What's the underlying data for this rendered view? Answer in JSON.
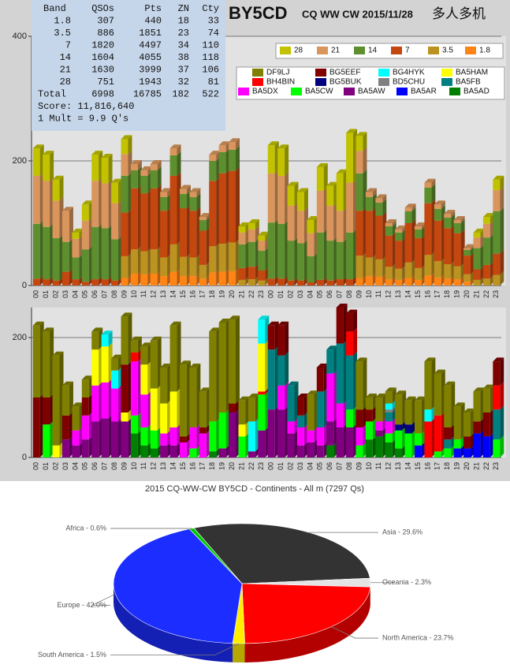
{
  "header": {
    "callsign": "BY5CD",
    "contest": "CQ WW CW 2015/11/28",
    "category": "多人多机"
  },
  "table": {
    "header": [
      "Band",
      "QSOs",
      "Pts",
      "ZN",
      "Cty"
    ],
    "rows": [
      [
        1.8,
        307,
        440,
        18,
        33
      ],
      [
        3.5,
        886,
        1851,
        23,
        74
      ],
      [
        7,
        1820,
        4497,
        34,
        110
      ],
      [
        14,
        1604,
        4055,
        38,
        118
      ],
      [
        21,
        1630,
        3999,
        37,
        106
      ],
      [
        28,
        751,
        1943,
        32,
        81
      ]
    ],
    "total": [
      "Total",
      6998,
      16785,
      182,
      522
    ],
    "score": "Score: 11,816,640",
    "mult": "1 Mult = 9.9 Q's"
  },
  "chart_data": [
    {
      "type": "bar",
      "stacked": true,
      "grid": true,
      "categories": [
        "00",
        "01",
        "02",
        "03",
        "04",
        "05",
        "06",
        "07",
        "08",
        "09",
        "10",
        "11",
        "12",
        "13",
        "14",
        "15",
        "16",
        "17",
        "18",
        "19",
        "20",
        "21",
        "22",
        "23",
        "00",
        "01",
        "02",
        "03",
        "04",
        "05",
        "06",
        "07",
        "08",
        "09",
        "10",
        "11",
        "12",
        "13",
        "14",
        "15",
        "16",
        "17",
        "18",
        "19",
        "20",
        "21",
        "22",
        "23"
      ],
      "ylim": [
        0,
        400
      ],
      "yticks": [
        0,
        200,
        400
      ],
      "series": [
        {
          "name": "28",
          "color": "#c2c200",
          "values": [
            44,
            42,
            34,
            0,
            10,
            26,
            42,
            41,
            33,
            24,
            0,
            0,
            0,
            0,
            0,
            0,
            0,
            0,
            0,
            0,
            0,
            10,
            10,
            8,
            45,
            44,
            32,
            30,
            21,
            38,
            32,
            60,
            80,
            24,
            0,
            0,
            0,
            0,
            0,
            0,
            0,
            0,
            0,
            0,
            0,
            8,
            11,
            17
          ]
        },
        {
          "name": "21",
          "color": "#d9955b",
          "values": [
            77,
            74,
            60,
            50,
            30,
            46,
            74,
            72,
            58,
            35,
            10,
            9,
            10,
            8,
            11,
            8,
            8,
            5,
            10,
            11,
            12,
            19,
            20,
            16,
            79,
            77,
            56,
            52,
            37,
            67,
            56,
            50,
            80,
            36,
            8,
            7,
            5,
            5,
            6,
            5,
            8,
            7,
            6,
            5,
            3,
            17,
            22,
            34
          ]
        },
        {
          "name": "14",
          "color": "#5e8f2e",
          "values": [
            88,
            84,
            68,
            48,
            35,
            52,
            84,
            82,
            66,
            59,
            29,
            28,
            29,
            22,
            33,
            23,
            22,
            17,
            32,
            34,
            34,
            38,
            40,
            32,
            90,
            88,
            64,
            60,
            42,
            76,
            64,
            60,
            75,
            60,
            22,
            21,
            15,
            13,
            19,
            14,
            25,
            19,
            17,
            16,
            9,
            34,
            44,
            68
          ]
        },
        {
          "name": "7",
          "color": "#c4470f",
          "values": [
            11,
            10,
            8,
            22,
            10,
            6,
            10,
            10,
            8,
            70,
            98,
            93,
            98,
            75,
            110,
            78,
            75,
            55,
            105,
            113,
            115,
            19,
            20,
            16,
            11,
            11,
            8,
            8,
            5,
            9,
            8,
            10,
            10,
            72,
            75,
            70,
            50,
            45,
            63,
            48,
            83,
            65,
            58,
            53,
            30,
            17,
            22,
            34
          ]
        },
        {
          "name": "3.5",
          "color": "#bc9220",
          "values": [
            0,
            0,
            0,
            0,
            0,
            0,
            0,
            0,
            0,
            35,
            39,
            37,
            39,
            30,
            44,
            31,
            30,
            22,
            42,
            45,
            46,
            9,
            10,
            8,
            0,
            0,
            0,
            0,
            0,
            0,
            0,
            0,
            0,
            36,
            30,
            28,
            20,
            18,
            25,
            19,
            33,
            26,
            23,
            21,
            12,
            9,
            11,
            17
          ]
        },
        {
          "name": "1.8",
          "color": "#ff8416",
          "values": [
            0,
            0,
            0,
            0,
            0,
            0,
            0,
            0,
            0,
            12,
            19,
            18,
            19,
            15,
            22,
            15,
            15,
            11,
            21,
            22,
            23,
            0,
            0,
            0,
            0,
            0,
            0,
            0,
            0,
            0,
            0,
            0,
            0,
            12,
            15,
            14,
            10,
            9,
            12,
            9,
            16,
            13,
            11,
            10,
            6,
            0,
            0,
            0
          ]
        }
      ]
    },
    {
      "type": "bar",
      "stacked": true,
      "grid": true,
      "categories": [
        "00",
        "01",
        "02",
        "03",
        "04",
        "05",
        "06",
        "07",
        "08",
        "09",
        "10",
        "11",
        "12",
        "13",
        "14",
        "15",
        "16",
        "17",
        "18",
        "19",
        "20",
        "21",
        "22",
        "23",
        "00",
        "01",
        "02",
        "03",
        "04",
        "05",
        "06",
        "07",
        "08",
        "09",
        "10",
        "11",
        "12",
        "13",
        "14",
        "15",
        "16",
        "17",
        "18",
        "19",
        "20",
        "21",
        "22",
        "23"
      ],
      "ylim": [
        0,
        250
      ],
      "yticks": [
        0,
        200
      ],
      "series": [
        {
          "name": "DF9LJ",
          "color": "#808000",
          "values": [
            120,
            110,
            150,
            50,
            40,
            30,
            30,
            0,
            20,
            80,
            20,
            30,
            80,
            60,
            110,
            120,
            100,
            60,
            150,
            150,
            140,
            40,
            40,
            0,
            0,
            0,
            0,
            0,
            60,
            0,
            0,
            0,
            0,
            80,
            20,
            40,
            20,
            50,
            40,
            55,
            80,
            70,
            70,
            55,
            40,
            50,
            40,
            0
          ]
        },
        {
          "name": "BG5EEF",
          "color": "#800000",
          "values": [
            100,
            45,
            0,
            40,
            0,
            30,
            0,
            0,
            0,
            80,
            0,
            0,
            0,
            0,
            0,
            10,
            0,
            10,
            0,
            0,
            15,
            0,
            0,
            0,
            40,
            50,
            0,
            30,
            0,
            40,
            0,
            60,
            30,
            30,
            20,
            0,
            0,
            0,
            0,
            0,
            0,
            0,
            20,
            0,
            20,
            20,
            40,
            40
          ]
        },
        {
          "name": "BG4HYK",
          "color": "#00ffff",
          "values": [
            0,
            0,
            0,
            0,
            0,
            0,
            0,
            20,
            30,
            0,
            0,
            0,
            0,
            0,
            0,
            0,
            0,
            0,
            0,
            0,
            0,
            0,
            50,
            40,
            0,
            0,
            0,
            0,
            0,
            0,
            0,
            0,
            0,
            0,
            0,
            0,
            10,
            0,
            0,
            0,
            20,
            0,
            0,
            0,
            0,
            0,
            0,
            0
          ]
        },
        {
          "name": "BA5HAM",
          "color": "#ffff00",
          "values": [
            0,
            0,
            20,
            0,
            0,
            0,
            60,
            60,
            0,
            15,
            0,
            50,
            70,
            50,
            60,
            0,
            0,
            0,
            0,
            0,
            0,
            20,
            0,
            80,
            0,
            0,
            0,
            0,
            0,
            0,
            0,
            0,
            0,
            0,
            0,
            0,
            0,
            0,
            0,
            0,
            0,
            0,
            0,
            0,
            0,
            0,
            0,
            0
          ]
        },
        {
          "name": "BH4BIN",
          "color": "#ff0000",
          "values": [
            0,
            0,
            0,
            0,
            0,
            0,
            0,
            0,
            0,
            0,
            15,
            0,
            0,
            0,
            0,
            0,
            0,
            0,
            0,
            0,
            0,
            0,
            0,
            5,
            0,
            0,
            0,
            0,
            0,
            0,
            0,
            0,
            40,
            0,
            0,
            0,
            0,
            0,
            0,
            0,
            60,
            60,
            0,
            0,
            0,
            0,
            0,
            40
          ]
        },
        {
          "name": "BG5BUK",
          "color": "#000080",
          "values": [
            0,
            0,
            0,
            0,
            0,
            0,
            0,
            0,
            0,
            0,
            0,
            0,
            0,
            0,
            0,
            0,
            0,
            0,
            0,
            0,
            0,
            0,
            0,
            0,
            0,
            0,
            0,
            0,
            0,
            0,
            0,
            0,
            0,
            0,
            0,
            0,
            0,
            10,
            15,
            0,
            0,
            0,
            0,
            0,
            0,
            0,
            0,
            0
          ]
        },
        {
          "name": "BD5CHU",
          "color": "#808080",
          "values": [
            0,
            0,
            0,
            0,
            0,
            0,
            0,
            0,
            0,
            0,
            0,
            0,
            0,
            0,
            0,
            0,
            0,
            0,
            0,
            0,
            0,
            0,
            0,
            0,
            0,
            0,
            0,
            0,
            0,
            0,
            0,
            0,
            0,
            0,
            0,
            0,
            5,
            0,
            0,
            0,
            0,
            0,
            0,
            0,
            0,
            0,
            0,
            0
          ]
        },
        {
          "name": "BA5FB",
          "color": "#008080",
          "values": [
            0,
            0,
            0,
            0,
            0,
            0,
            0,
            0,
            0,
            0,
            0,
            0,
            0,
            0,
            0,
            0,
            0,
            0,
            0,
            0,
            0,
            0,
            0,
            0,
            100,
            50,
            60,
            20,
            0,
            60,
            40,
            100,
            90,
            0,
            0,
            0,
            15,
            0,
            0,
            0,
            0,
            0,
            15,
            0,
            0,
            0,
            0,
            50
          ]
        },
        {
          "name": "BA5DX",
          "color": "#ff00ff",
          "values": [
            0,
            0,
            0,
            0,
            25,
            40,
            60,
            60,
            55,
            0,
            90,
            55,
            0,
            20,
            30,
            25,
            35,
            40,
            0,
            0,
            0,
            0,
            0,
            0,
            0,
            40,
            20,
            30,
            20,
            30,
            80,
            40,
            0,
            30,
            0,
            15,
            20,
            0,
            0,
            0,
            0,
            0,
            0,
            0,
            0,
            0,
            0,
            0
          ]
        },
        {
          "name": "BA5CW",
          "color": "#00ff00",
          "values": [
            0,
            55,
            0,
            0,
            0,
            0,
            0,
            0,
            0,
            0,
            30,
            30,
            30,
            0,
            0,
            0,
            15,
            0,
            50,
            60,
            0,
            35,
            0,
            60,
            0,
            0,
            0,
            0,
            0,
            0,
            0,
            0,
            30,
            20,
            30,
            0,
            15,
            30,
            40,
            20,
            0,
            10,
            15,
            15,
            0,
            0,
            0,
            30
          ]
        },
        {
          "name": "BA5AW",
          "color": "#800080",
          "values": [
            0,
            0,
            0,
            30,
            20,
            30,
            60,
            65,
            60,
            60,
            0,
            0,
            0,
            20,
            20,
            0,
            0,
            0,
            0,
            15,
            75,
            0,
            10,
            45,
            80,
            80,
            40,
            20,
            25,
            20,
            40,
            50,
            50,
            0,
            0,
            10,
            0,
            0,
            0,
            0,
            0,
            0,
            0,
            0,
            0,
            0,
            0,
            0
          ]
        },
        {
          "name": "BA5AR",
          "color": "#0000ff",
          "values": [
            0,
            0,
            0,
            0,
            0,
            0,
            0,
            0,
            0,
            0,
            0,
            0,
            0,
            0,
            0,
            0,
            0,
            0,
            0,
            0,
            0,
            0,
            0,
            0,
            0,
            0,
            0,
            0,
            0,
            0,
            0,
            0,
            0,
            0,
            0,
            0,
            0,
            0,
            0,
            20,
            0,
            0,
            0,
            15,
            15,
            40,
            35,
            0
          ]
        },
        {
          "name": "BA5AD",
          "color": "#008000",
          "values": [
            0,
            0,
            0,
            0,
            0,
            0,
            0,
            0,
            0,
            0,
            40,
            20,
            15,
            0,
            0,
            0,
            0,
            0,
            10,
            0,
            0,
            0,
            0,
            0,
            0,
            0,
            0,
            0,
            0,
            0,
            20,
            0,
            0,
            0,
            30,
            35,
            25,
            15,
            0,
            0,
            0,
            0,
            0,
            0,
            0,
            0,
            0,
            0
          ]
        }
      ]
    },
    {
      "type": "pie",
      "title": "2015 CQ-WW-CW BY5CD - Continents - All m (7297 Qs)",
      "values": [
        29.6,
        2.3,
        23.7,
        1.5,
        42.0,
        0.6
      ],
      "value_labels": [
        "Asia - 29.6%",
        "Oceania - 2.3%",
        "North America - 23.7%",
        "South America - 1.5%",
        "Europe - 42.0%",
        "Africa - 0.6%"
      ],
      "colors": [
        "#333333",
        "#e4e4e4",
        "#ff0000",
        "#ffee00",
        "#1c2dff",
        "#00c800"
      ]
    }
  ]
}
